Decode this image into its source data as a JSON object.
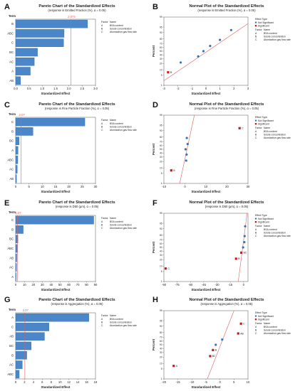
{
  "figure": {
    "panels": [
      {
        "label": "A"
      },
      {
        "label": "B"
      },
      {
        "label": "C"
      },
      {
        "label": "D"
      },
      {
        "label": "E"
      },
      {
        "label": "F"
      },
      {
        "label": "G"
      },
      {
        "label": "H"
      }
    ]
  },
  "chart_data": [
    {
      "id": "A",
      "type": "bar",
      "orientation": "horizontal",
      "title": "Pareto Chart of the Standardized Effects",
      "subtitle": "(response is Emitted Fraction (%), α = 0.05)",
      "ylabel": "Term",
      "xlabel": "Standardized Effect",
      "categories": [
        "B",
        "ABC",
        "C",
        "BC",
        "AC",
        "A",
        "AB"
      ],
      "values": [
        2.7,
        1.82,
        1.8,
        0.82,
        0.7,
        0.55,
        0.18
      ],
      "xlim": [
        0,
        3
      ],
      "xticks": [
        "0.0",
        "0.5",
        "1.0",
        "1.5",
        "2.0",
        "2.5",
        "3.0"
      ],
      "reference": {
        "value": 2.074,
        "label": "2.074"
      },
      "legend": {
        "title_factor": "Factor",
        "title_name": "Name",
        "entries": [
          {
            "factor": "A",
            "name": "BSA content"
          },
          {
            "factor": "B",
            "name": "Solute concentration"
          },
          {
            "factor": "C",
            "name": "Atomization gas flow rate"
          }
        ]
      }
    },
    {
      "id": "B",
      "type": "scatter",
      "title": "Normal Plot of the Standardized Effects",
      "subtitle": "(response is Emitted Fraction (%), α = 0.05)",
      "ylabel": "Percent",
      "xlabel": "Standardized Effect",
      "xlim": [
        -3,
        3
      ],
      "xticks": [
        "-3",
        "-2",
        "-1",
        "0",
        "1",
        "2",
        "3"
      ],
      "ylim": [
        1,
        99
      ],
      "yticks": [
        "1",
        "5",
        "10",
        "20",
        "30",
        "40",
        "50",
        "60",
        "70",
        "80",
        "90",
        "95",
        "99"
      ],
      "points": [
        {
          "x": -2.7,
          "y": 7.5,
          "sig": true,
          "label": "B"
        },
        {
          "x": -1.8,
          "y": 22,
          "sig": false
        },
        {
          "x": -0.55,
          "y": 36,
          "sig": false
        },
        {
          "x": -0.18,
          "y": 50,
          "sig": false
        },
        {
          "x": 0.3,
          "y": 64,
          "sig": false
        },
        {
          "x": 1.0,
          "y": 78,
          "sig": false
        },
        {
          "x": 1.8,
          "y": 92.5,
          "sig": false
        }
      ],
      "line": [
        [
          -3,
          2.2
        ],
        [
          3,
          97
        ]
      ],
      "legend": {
        "effect_title": "Effect Type",
        "effect_entries": [
          "Not Significant",
          "Significant"
        ],
        "title_factor": "Factor",
        "title_name": "Name",
        "entries": [
          {
            "factor": "A",
            "name": "BSA content"
          },
          {
            "factor": "B",
            "name": "Solute concentration"
          },
          {
            "factor": "C",
            "name": "Atomization gas flow rate"
          }
        ]
      }
    },
    {
      "id": "C",
      "type": "bar",
      "orientation": "horizontal",
      "title": "Pareto Chart of the Standardized Effects",
      "subtitle": "(response is Fine Particle Fraction (%), α = 0.05)",
      "ylabel": "Term",
      "xlabel": "Standardized Effect",
      "categories": [
        "C",
        "B",
        "BC",
        "A",
        "ABC",
        "AC",
        "AB"
      ],
      "values": [
        26,
        6.5,
        1.3,
        0.9,
        0.8,
        0.6,
        0.3
      ],
      "xlim": [
        0,
        30
      ],
      "xticks": [
        "0",
        "5",
        "10",
        "15",
        "20",
        "25",
        "30"
      ],
      "reference": {
        "value": 2.07,
        "label": "2.07"
      },
      "legend": {
        "title_factor": "Factor",
        "title_name": "Name",
        "entries": [
          {
            "factor": "A",
            "name": "BSA content"
          },
          {
            "factor": "B",
            "name": "Solute concentration"
          },
          {
            "factor": "C",
            "name": "Atomization gas flow rate"
          }
        ]
      }
    },
    {
      "id": "D",
      "type": "scatter",
      "title": "Normal Plot of the Standardized Effects",
      "subtitle": "(response is Fine Particle Fraction (%), α = 0.05)",
      "ylabel": "Percent",
      "xlabel": "Standardized Effect",
      "xlim": [
        -10,
        30
      ],
      "xticks": [
        "-10",
        "0",
        "10",
        "20",
        "30"
      ],
      "ylim": [
        1,
        99
      ],
      "yticks": [
        "1",
        "5",
        "10",
        "20",
        "30",
        "40",
        "50",
        "60",
        "70",
        "80",
        "90",
        "95",
        "99"
      ],
      "points": [
        {
          "x": -6.5,
          "y": 7.5,
          "sig": true,
          "label": "B"
        },
        {
          "x": 0.6,
          "y": 22,
          "sig": false
        },
        {
          "x": 0.8,
          "y": 36,
          "sig": false
        },
        {
          "x": 0.3,
          "y": 50,
          "sig": false
        },
        {
          "x": 1.3,
          "y": 64,
          "sig": false
        },
        {
          "x": 0.9,
          "y": 78,
          "sig": false
        },
        {
          "x": 26,
          "y": 92.5,
          "sig": true,
          "label": "C"
        }
      ],
      "line": [
        [
          -2.5,
          1
        ],
        [
          4.5,
          99
        ]
      ],
      "legend": {
        "effect_title": "Effect Type",
        "effect_entries": [
          "Not Significant",
          "Significant"
        ],
        "title_factor": "Factor",
        "title_name": "Name",
        "entries": [
          {
            "factor": "A",
            "name": "BSA content"
          },
          {
            "factor": "B",
            "name": "Solute concentration"
          },
          {
            "factor": "C",
            "name": "Atomization gas flow rate"
          }
        ]
      }
    },
    {
      "id": "E",
      "type": "bar",
      "orientation": "horizontal",
      "title": "Pareto Chart of the Standardized Effects",
      "subtitle": "(response is D50 (µm), α = 0.05)",
      "ylabel": "Term",
      "xlabel": "Standardized Effect",
      "categories": [
        "C",
        "B",
        "BC",
        "ABC",
        "AB",
        "AC",
        "A"
      ],
      "values": [
        88,
        8.5,
        2.5,
        1.8,
        1.2,
        0.9,
        0.5
      ],
      "xlim": [
        0,
        90
      ],
      "xticks": [
        "0",
        "10",
        "20",
        "30",
        "40",
        "50",
        "60",
        "70",
        "80",
        "90"
      ],
      "reference": {
        "value": 2.07,
        "label": "2.07"
      },
      "legend": {
        "title_factor": "Factor",
        "title_name": "Name",
        "entries": [
          {
            "factor": "A",
            "name": "BSA content"
          },
          {
            "factor": "B",
            "name": "Solute concentration"
          },
          {
            "factor": "C",
            "name": "Atomization gas flow rate"
          }
        ]
      }
    },
    {
      "id": "F",
      "type": "scatter",
      "title": "Normal Plot of the Standardized Effects",
      "subtitle": "(response is D50 (µm), α = 0.05)",
      "ylabel": "Percent",
      "xlabel": "Standardized Effect",
      "xlim": [
        -90,
        5
      ],
      "xticks": [
        "-90",
        "-75",
        "-60",
        "-45",
        "-30",
        "-15",
        "0"
      ],
      "ylim": [
        1,
        99
      ],
      "yticks": [
        "1",
        "5",
        "10",
        "20",
        "30",
        "40",
        "50",
        "60",
        "70",
        "80",
        "90",
        "95",
        "99"
      ],
      "points": [
        {
          "x": -88,
          "y": 7.5,
          "sig": true,
          "label": "C"
        },
        {
          "x": -8.5,
          "y": 22,
          "sig": true,
          "label": "B"
        },
        {
          "x": -2.5,
          "y": 36,
          "sig": true,
          "label": "BC"
        },
        {
          "x": -0.5,
          "y": 50,
          "sig": false
        },
        {
          "x": 0.9,
          "y": 64,
          "sig": false
        },
        {
          "x": 1.2,
          "y": 78,
          "sig": false
        },
        {
          "x": 1.8,
          "y": 92.5,
          "sig": false
        }
      ],
      "line": [
        [
          -6,
          1
        ],
        [
          4,
          99
        ]
      ],
      "legend": {
        "effect_title": "Effect Type",
        "effect_entries": [
          "Not Significant",
          "Significant"
        ],
        "title_factor": "Factor",
        "title_name": "Name",
        "entries": [
          {
            "factor": "A",
            "name": "BSA content"
          },
          {
            "factor": "B",
            "name": "Solute concentration"
          },
          {
            "factor": "C",
            "name": "Atomization gas flow rate"
          }
        ]
      }
    },
    {
      "id": "G",
      "type": "bar",
      "orientation": "horizontal",
      "title": "Pareto Chart of the Standardized Effects",
      "subtitle": "(response is Aggregation (%), α = 0.05)",
      "ylabel": "Term",
      "xlabel": "Standardized Effect",
      "categories": [
        "A",
        "C",
        "AB",
        "BC",
        "B",
        "AC",
        "ABC"
      ],
      "values": [
        16.5,
        7.5,
        6.5,
        3.5,
        2.5,
        1.5,
        0.8
      ],
      "xlim": [
        0,
        18
      ],
      "xticks": [
        "0",
        "2",
        "4",
        "6",
        "8",
        "10",
        "12",
        "14",
        "16",
        "18"
      ],
      "reference": {
        "value": 2.07,
        "label": "2.07"
      },
      "legend": {
        "title_factor": "Factor",
        "title_name": "Name",
        "entries": [
          {
            "factor": "A",
            "name": "BSA content"
          },
          {
            "factor": "B",
            "name": "Solute concentration"
          },
          {
            "factor": "C",
            "name": "Atomization gas flow rate"
          }
        ]
      }
    },
    {
      "id": "H",
      "type": "scatter",
      "title": "Normal Plot of the Standardized Effects",
      "subtitle": "(response is Aggregation (%), α = 0.05)",
      "ylabel": "Percent",
      "xlabel": "Standardized Effect",
      "xlim": [
        -20,
        10
      ],
      "xticks": [
        "-20",
        "-15",
        "-10",
        "-5",
        "0",
        "5",
        "10"
      ],
      "ylim": [
        1,
        99
      ],
      "yticks": [
        "1",
        "5",
        "10",
        "20",
        "30",
        "40",
        "50",
        "60",
        "70",
        "80",
        "90",
        "95",
        "99"
      ],
      "points": [
        {
          "x": -16.5,
          "y": 7.5,
          "sig": true,
          "label": "A"
        },
        {
          "x": -3.5,
          "y": 22,
          "sig": true,
          "label": "BC"
        },
        {
          "x": -2.5,
          "y": 36,
          "sig": true,
          "label": "B"
        },
        {
          "x": -1.5,
          "y": 50,
          "sig": false
        },
        {
          "x": 0.8,
          "y": 64,
          "sig": false
        },
        {
          "x": 6.5,
          "y": 78,
          "sig": true,
          "label": "AB"
        },
        {
          "x": 7.5,
          "y": 92.5,
          "sig": true,
          "label": "C"
        }
      ],
      "line": [
        [
          -4.5,
          1
        ],
        [
          5,
          99
        ]
      ],
      "legend": {
        "effect_title": "Effect Type",
        "effect_entries": [
          "Not Significant",
          "Significant"
        ],
        "title_factor": "Factor",
        "title_name": "Name",
        "entries": [
          {
            "factor": "A",
            "name": "BSA content"
          },
          {
            "factor": "B",
            "name": "Solute concentration"
          },
          {
            "factor": "C",
            "name": "Atomization gas flow rate"
          }
        ]
      }
    }
  ],
  "colors": {
    "bar": "#4a86c8",
    "bar_edge": "#2f6aa8",
    "ref_line": "#e06060",
    "point": "#3b6fb6",
    "sig_point": "#c22020",
    "text": "#222222",
    "axis": "#555555"
  }
}
